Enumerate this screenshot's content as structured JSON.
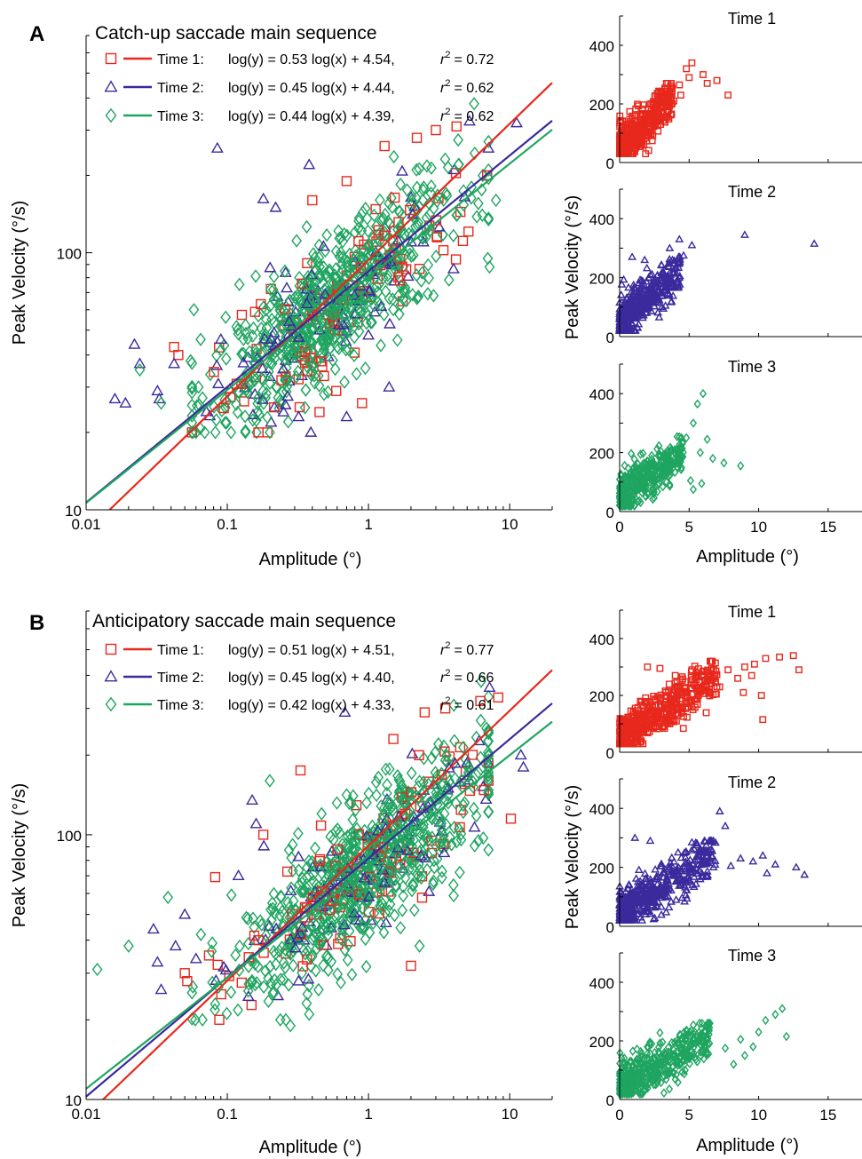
{
  "chart_data": [
    {
      "panel": "A",
      "type": "scatter",
      "title": "Catch-up saccade main sequence",
      "xlabel": "Amplitude (°)",
      "ylabel": "Peak Velocity (°/s)",
      "x_scale": "log",
      "y_scale": "log",
      "xlim": [
        0.01,
        20
      ],
      "ylim": [
        10,
        700
      ],
      "x_ticks": [
        "0.01",
        "0.1",
        "1",
        "10"
      ],
      "y_ticks": [
        "10",
        "100"
      ],
      "series": [
        {
          "name": "Time 1",
          "marker": "square",
          "color": "#e8281c",
          "fit": {
            "slope": 0.53,
            "intercept": 4.54,
            "r2": 0.72
          },
          "equation": "log(y) = 0.53 log(x) + 4.54,",
          "r2_label": "= 0.72"
        },
        {
          "name": "Time 2",
          "marker": "triangle",
          "color": "#3a2a9c",
          "fit": {
            "slope": 0.45,
            "intercept": 4.44,
            "r2": 0.62
          },
          "equation": "log(y) = 0.45 log(x) + 4.44,",
          "r2_label": "= 0.62"
        },
        {
          "name": "Time 3",
          "marker": "diamond",
          "color": "#1fa560",
          "fit": {
            "slope": 0.44,
            "intercept": 4.39,
            "r2": 0.62
          },
          "equation": "log(y) = 0.44 log(x) + 4.39,",
          "r2_label": "= 0.62"
        }
      ],
      "points": [
        {
          "series": 1,
          "x": 0.085,
          "y": 255
        },
        {
          "series": 1,
          "x": 0.016,
          "y": 27
        },
        {
          "series": 1,
          "x": 0.019,
          "y": 26
        },
        {
          "series": 1,
          "x": 0.022,
          "y": 44
        },
        {
          "series": 1,
          "x": 0.024,
          "y": 37
        },
        {
          "series": 2,
          "x": 0.024,
          "y": 35
        },
        {
          "series": 1,
          "x": 0.032,
          "y": 29
        },
        {
          "series": 1,
          "x": 0.033,
          "y": 27
        },
        {
          "series": 2,
          "x": 0.034,
          "y": 26
        },
        {
          "series": 2,
          "x": 0.055,
          "y": 38
        },
        {
          "series": 2,
          "x": 0.058,
          "y": 60
        },
        {
          "series": 0,
          "x": 0.042,
          "y": 43
        },
        {
          "series": 0,
          "x": 0.045,
          "y": 40
        },
        {
          "series": 1,
          "x": 0.042,
          "y": 37
        },
        {
          "series": 1,
          "x": 0.09,
          "y": 46
        },
        {
          "series": 1,
          "x": 0.18,
          "y": 162
        },
        {
          "series": 1,
          "x": 0.22,
          "y": 150
        },
        {
          "series": 1,
          "x": 0.38,
          "y": 220
        },
        {
          "series": 0,
          "x": 0.4,
          "y": 160
        },
        {
          "series": 0,
          "x": 0.7,
          "y": 190
        },
        {
          "series": 0,
          "x": 1.3,
          "y": 260
        },
        {
          "series": 0,
          "x": 2.2,
          "y": 280
        },
        {
          "series": 0,
          "x": 3.0,
          "y": 300
        },
        {
          "series": 0,
          "x": 4.2,
          "y": 310
        },
        {
          "series": 1,
          "x": 5.2,
          "y": 325
        },
        {
          "series": 1,
          "x": 11.2,
          "y": 320
        },
        {
          "series": 2,
          "x": 5.6,
          "y": 380
        },
        {
          "series": 2,
          "x": 6.4,
          "y": 140
        },
        {
          "series": 2,
          "x": 7.0,
          "y": 95
        },
        {
          "series": 2,
          "x": 7.2,
          "y": 88
        },
        {
          "series": 2,
          "x": 8.0,
          "y": 160
        },
        {
          "series": 1,
          "x": 4.8,
          "y": 165
        },
        {
          "series": 1,
          "x": 0.25,
          "y": 24
        },
        {
          "series": 1,
          "x": 0.32,
          "y": 23
        },
        {
          "series": 0,
          "x": 0.45,
          "y": 24
        },
        {
          "series": 2,
          "x": 0.27,
          "y": 22
        },
        {
          "series": 1,
          "x": 0.7,
          "y": 23
        },
        {
          "series": 0,
          "x": 0.9,
          "y": 26
        },
        {
          "series": 1,
          "x": 1.4,
          "y": 30
        }
      ],
      "clusters": [
        {
          "series": 2,
          "x_center": 0.55,
          "x_spread": 1.05,
          "y_from_fit": true,
          "y_spread": 0.3,
          "count": 900
        }
      ]
    },
    {
      "panel": "A-Time 1",
      "type": "scatter",
      "title": "Time 1",
      "ylabel": "Peak Velocity (°/s)",
      "xlim": [
        0,
        17.5
      ],
      "ylim": [
        0,
        500
      ],
      "y_ticks": [
        "0",
        "200",
        "400"
      ],
      "x_ticks": [],
      "series": [
        {
          "name": "Time 1",
          "marker": "square",
          "color": "#e8281c"
        }
      ],
      "points": [
        {
          "x": 5.2,
          "y": 340
        },
        {
          "x": 5.0,
          "y": 290
        },
        {
          "x": 6.0,
          "y": 300
        },
        {
          "x": 7.0,
          "y": 280
        },
        {
          "x": 7.8,
          "y": 230
        },
        {
          "x": 4.8,
          "y": 320
        },
        {
          "x": 4.3,
          "y": 265
        },
        {
          "x": 3.7,
          "y": 270
        },
        {
          "x": 3.3,
          "y": 250
        },
        {
          "x": 6.3,
          "y": 270
        },
        {
          "x": 4.4,
          "y": 230
        },
        {
          "x": 3.9,
          "y": 210
        }
      ],
      "clusters": [
        {
          "x_max": 3.8,
          "y_low": 30,
          "y_high": 250,
          "count": 420
        }
      ]
    },
    {
      "panel": "A-Time 2",
      "type": "scatter",
      "title": "Time 2",
      "ylabel": "Peak Velocity (°/s)",
      "xlim": [
        0,
        17.5
      ],
      "ylim": [
        0,
        500
      ],
      "y_ticks": [
        "0",
        "200",
        "400"
      ],
      "x_ticks": [],
      "series": [
        {
          "name": "Time 2",
          "marker": "triangle",
          "color": "#3a2a9c"
        }
      ],
      "points": [
        {
          "x": 9.0,
          "y": 345
        },
        {
          "x": 14.0,
          "y": 315
        },
        {
          "x": 4.3,
          "y": 330
        },
        {
          "x": 5.2,
          "y": 310
        },
        {
          "x": 0.9,
          "y": 270
        },
        {
          "x": 1.8,
          "y": 260
        },
        {
          "x": 3.6,
          "y": 300
        },
        {
          "x": 4.6,
          "y": 275
        }
      ],
      "clusters": [
        {
          "x_max": 4.4,
          "y_low": 20,
          "y_high": 250,
          "count": 420
        }
      ]
    },
    {
      "panel": "A-Time 3",
      "type": "scatter",
      "title": "Time 3",
      "xlabel": "Amplitude (°)",
      "ylabel": "Peak Velocity (°/s)",
      "xlim": [
        0,
        17.5
      ],
      "ylim": [
        0,
        500
      ],
      "x_ticks": [
        "0",
        "5",
        "10",
        "15"
      ],
      "y_ticks": [
        "0",
        "200",
        "400"
      ],
      "series": [
        {
          "name": "Time 3",
          "marker": "diamond",
          "color": "#1fa560"
        }
      ],
      "points": [
        {
          "x": 6.0,
          "y": 400
        },
        {
          "x": 5.6,
          "y": 365
        },
        {
          "x": 5.3,
          "y": 300
        },
        {
          "x": 5.8,
          "y": 200
        },
        {
          "x": 6.3,
          "y": 245
        },
        {
          "x": 6.7,
          "y": 180
        },
        {
          "x": 7.5,
          "y": 165
        },
        {
          "x": 8.7,
          "y": 155
        },
        {
          "x": 5.1,
          "y": 105
        },
        {
          "x": 5.9,
          "y": 95
        },
        {
          "x": 5.3,
          "y": 75
        },
        {
          "x": 4.8,
          "y": 250
        }
      ],
      "clusters": [
        {
          "x_max": 4.6,
          "y_low": 20,
          "y_high": 240,
          "count": 420
        }
      ]
    },
    {
      "panel": "B",
      "type": "scatter",
      "title": "Anticipatory saccade main sequence",
      "xlabel": "Amplitude (°)",
      "ylabel": "Peak Velocity (°/s)",
      "x_scale": "log",
      "y_scale": "log",
      "xlim": [
        0.01,
        20
      ],
      "ylim": [
        10,
        700
      ],
      "x_ticks": [
        "0.01",
        "0.1",
        "1",
        "10"
      ],
      "y_ticks": [
        "10",
        "100"
      ],
      "series": [
        {
          "name": "Time 1",
          "marker": "square",
          "color": "#e8281c",
          "fit": {
            "slope": 0.51,
            "intercept": 4.51,
            "r2": 0.77
          },
          "equation": "log(y) = 0.51 log(x) + 4.51,",
          "r2_label": "= 0.77"
        },
        {
          "name": "Time 2",
          "marker": "triangle",
          "color": "#3a2a9c",
          "fit": {
            "slope": 0.45,
            "intercept": 4.4,
            "r2": 0.66
          },
          "equation": "log(y) = 0.45 log(x) + 4.40,",
          "r2_label": "= 0.66"
        },
        {
          "name": "Time 3",
          "marker": "diamond",
          "color": "#1fa560",
          "fit": {
            "slope": 0.42,
            "intercept": 4.33,
            "r2": 0.61
          },
          "equation": "log(y) = 0.42 log(x) + 4.33,",
          "r2_label": "= 0.61"
        }
      ],
      "points": [
        {
          "series": 2,
          "x": 0.012,
          "y": 31
        },
        {
          "series": 2,
          "x": 0.02,
          "y": 38
        },
        {
          "series": 1,
          "x": 0.03,
          "y": 44
        },
        {
          "series": 1,
          "x": 0.032,
          "y": 33
        },
        {
          "series": 1,
          "x": 0.034,
          "y": 26
        },
        {
          "series": 2,
          "x": 0.038,
          "y": 58
        },
        {
          "series": 1,
          "x": 0.043,
          "y": 38
        },
        {
          "series": 0,
          "x": 0.05,
          "y": 30
        },
        {
          "series": 0,
          "x": 0.052,
          "y": 28
        },
        {
          "series": 1,
          "x": 0.05,
          "y": 50
        },
        {
          "series": 1,
          "x": 0.06,
          "y": 34
        },
        {
          "series": 2,
          "x": 0.065,
          "y": 42
        },
        {
          "series": 1,
          "x": 0.12,
          "y": 70
        },
        {
          "series": 1,
          "x": 0.15,
          "y": 135
        },
        {
          "series": 1,
          "x": 0.16,
          "y": 110
        },
        {
          "series": 0,
          "x": 0.18,
          "y": 100
        },
        {
          "series": 2,
          "x": 0.2,
          "y": 160
        },
        {
          "series": 0,
          "x": 0.33,
          "y": 175
        },
        {
          "series": 1,
          "x": 0.68,
          "y": 290
        },
        {
          "series": 0,
          "x": 1.5,
          "y": 230
        },
        {
          "series": 0,
          "x": 2.5,
          "y": 290
        },
        {
          "series": 0,
          "x": 3.5,
          "y": 300
        },
        {
          "series": 0,
          "x": 6.2,
          "y": 320
        },
        {
          "series": 0,
          "x": 8.3,
          "y": 330
        },
        {
          "series": 1,
          "x": 7.2,
          "y": 360
        },
        {
          "series": 1,
          "x": 12.0,
          "y": 200
        },
        {
          "series": 1,
          "x": 12.5,
          "y": 180
        },
        {
          "series": 0,
          "x": 10.2,
          "y": 115
        },
        {
          "series": 2,
          "x": 0.26,
          "y": 20
        },
        {
          "series": 2,
          "x": 0.28,
          "y": 19
        },
        {
          "series": 2,
          "x": 0.38,
          "y": 21
        },
        {
          "series": 2,
          "x": 0.37,
          "y": 25
        },
        {
          "series": 1,
          "x": 0.32,
          "y": 28
        },
        {
          "series": 0,
          "x": 2.0,
          "y": 32
        },
        {
          "series": 2,
          "x": 2.3,
          "y": 38
        },
        {
          "series": 2,
          "x": 6.0,
          "y": 95
        }
      ],
      "clusters": [
        {
          "series": 2,
          "x_center": 0.9,
          "x_spread": 1.05,
          "y_from_fit": true,
          "y_spread": 0.3,
          "count": 950
        }
      ]
    },
    {
      "panel": "B-Time 1",
      "type": "scatter",
      "title": "Time 1",
      "ylabel": "Peak Velocity (°/s)",
      "xlim": [
        0,
        17.5
      ],
      "ylim": [
        0,
        500
      ],
      "y_ticks": [
        "0",
        "200",
        "400"
      ],
      "x_ticks": [],
      "series": [
        {
          "name": "Time 1",
          "marker": "square",
          "color": "#e8281c"
        }
      ],
      "points": [
        {
          "x": 12.5,
          "y": 340
        },
        {
          "x": 11.5,
          "y": 335
        },
        {
          "x": 12.9,
          "y": 290
        },
        {
          "x": 10.5,
          "y": 330
        },
        {
          "x": 9.7,
          "y": 310
        },
        {
          "x": 9.0,
          "y": 300
        },
        {
          "x": 10.2,
          "y": 200
        },
        {
          "x": 10.3,
          "y": 115
        },
        {
          "x": 9.5,
          "y": 270
        },
        {
          "x": 8.5,
          "y": 260
        },
        {
          "x": 7.2,
          "y": 230
        },
        {
          "x": 6.6,
          "y": 255
        },
        {
          "x": 5.8,
          "y": 245
        },
        {
          "x": 7.8,
          "y": 290
        },
        {
          "x": 8.9,
          "y": 210
        },
        {
          "x": 2.0,
          "y": 300
        },
        {
          "x": 2.9,
          "y": 295
        },
        {
          "x": 5.2,
          "y": 290
        }
      ],
      "clusters": [
        {
          "x_max": 7.0,
          "y_low": 30,
          "y_high": 300,
          "count": 480
        }
      ]
    },
    {
      "panel": "B-Time 2",
      "type": "scatter",
      "title": "Time 2",
      "ylabel": "Peak Velocity (°/s)",
      "xlim": [
        0,
        17.5
      ],
      "ylim": [
        0,
        500
      ],
      "y_ticks": [
        "0",
        "200",
        "400"
      ],
      "x_ticks": [],
      "series": [
        {
          "name": "Time 2",
          "marker": "triangle",
          "color": "#3a2a9c"
        }
      ],
      "points": [
        {
          "x": 7.2,
          "y": 390
        },
        {
          "x": 7.6,
          "y": 340
        },
        {
          "x": 1.1,
          "y": 300
        },
        {
          "x": 2.2,
          "y": 290
        },
        {
          "x": 12.7,
          "y": 200
        },
        {
          "x": 13.3,
          "y": 175
        },
        {
          "x": 11.2,
          "y": 210
        },
        {
          "x": 10.3,
          "y": 240
        },
        {
          "x": 9.6,
          "y": 220
        },
        {
          "x": 8.7,
          "y": 230
        },
        {
          "x": 8.0,
          "y": 205
        },
        {
          "x": 10.6,
          "y": 180
        }
      ],
      "clusters": [
        {
          "x_max": 7.0,
          "y_low": 20,
          "y_high": 270,
          "count": 500
        }
      ]
    },
    {
      "panel": "B-Time 3",
      "type": "scatter",
      "title": "Time 3",
      "xlabel": "Amplitude (°)",
      "ylabel": "Peak Velocity (°/s)",
      "xlim": [
        0,
        17.5
      ],
      "ylim": [
        0,
        500
      ],
      "x_ticks": [
        "0",
        "5",
        "10",
        "15"
      ],
      "y_ticks": [
        "0",
        "200",
        "400"
      ],
      "series": [
        {
          "name": "Time 3",
          "marker": "diamond",
          "color": "#1fa560"
        }
      ],
      "points": [
        {
          "x": 11.7,
          "y": 310
        },
        {
          "x": 11.2,
          "y": 290
        },
        {
          "x": 10.5,
          "y": 270
        },
        {
          "x": 12.0,
          "y": 215
        },
        {
          "x": 10.0,
          "y": 230
        },
        {
          "x": 9.6,
          "y": 180
        },
        {
          "x": 8.7,
          "y": 205
        },
        {
          "x": 9.0,
          "y": 150
        },
        {
          "x": 8.2,
          "y": 120
        },
        {
          "x": 7.6,
          "y": 175
        },
        {
          "x": 6.5,
          "y": 260
        },
        {
          "x": 6.0,
          "y": 200
        }
      ],
      "clusters": [
        {
          "x_max": 6.5,
          "y_low": 20,
          "y_high": 240,
          "count": 480
        }
      ]
    }
  ],
  "labels": {
    "panel_a": "A",
    "panel_b": "B",
    "r_symbol": "r",
    "r_sup": "2"
  }
}
